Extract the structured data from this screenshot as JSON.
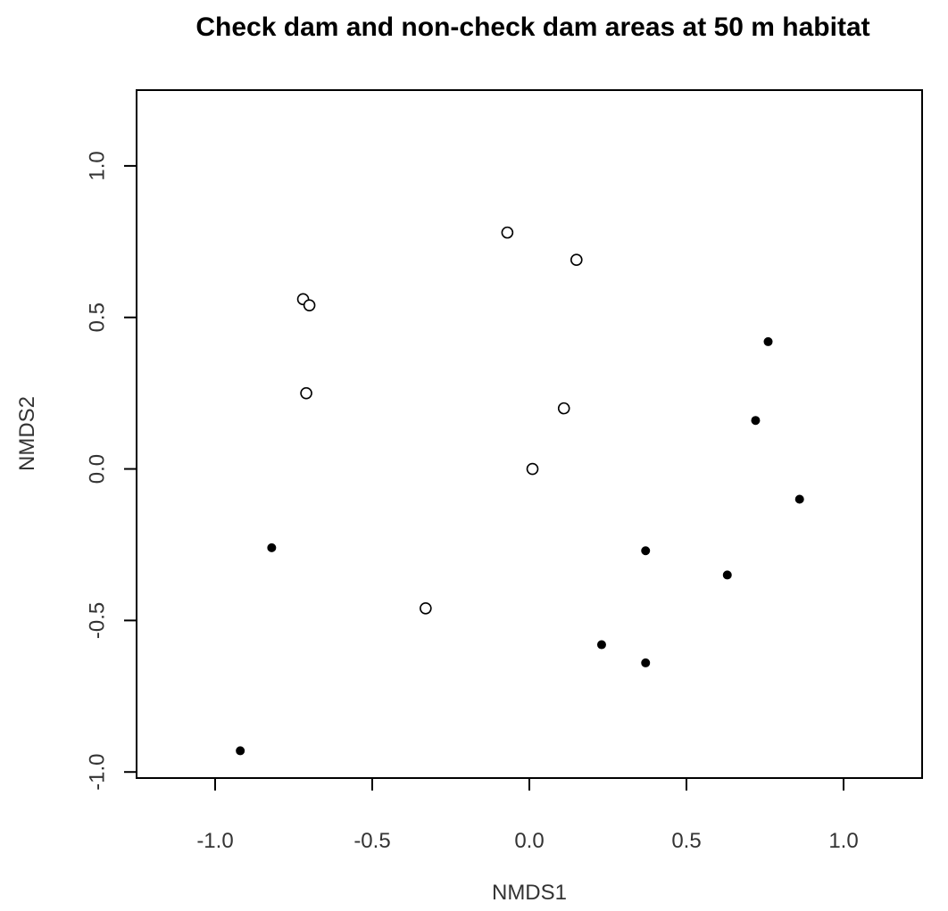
{
  "chart_data": {
    "type": "scatter",
    "title": "Check dam and non-check dam areas at 50 m habitat",
    "xlabel": "NMDS1",
    "ylabel": "NMDS2",
    "xlim": [
      -1.25,
      1.25
    ],
    "ylim": [
      -1.02,
      1.25
    ],
    "xticks": [
      -1.0,
      -0.5,
      0.0,
      0.5,
      1.0
    ],
    "xtick_labels": [
      "-1.0",
      "-0.5",
      "0.0",
      "0.5",
      "1.0"
    ],
    "yticks": [
      -1.0,
      -0.5,
      0.0,
      0.5,
      1.0
    ],
    "ytick_labels": [
      "-1.0",
      "-0.5",
      "0.0",
      "0.5",
      "1.0"
    ],
    "grid": false,
    "series": [
      {
        "marker": "open-circle",
        "color": "#000000",
        "points": [
          {
            "x": -0.07,
            "y": 0.78
          },
          {
            "x": 0.15,
            "y": 0.69
          },
          {
            "x": -0.72,
            "y": 0.56
          },
          {
            "x": -0.7,
            "y": 0.54
          },
          {
            "x": -0.71,
            "y": 0.25
          },
          {
            "x": 0.11,
            "y": 0.2
          },
          {
            "x": 0.01,
            "y": 0.0
          },
          {
            "x": -0.33,
            "y": -0.46
          }
        ]
      },
      {
        "marker": "filled-circle",
        "color": "#000000",
        "points": [
          {
            "x": 0.76,
            "y": 0.42
          },
          {
            "x": 0.72,
            "y": 0.16
          },
          {
            "x": 0.86,
            "y": -0.1
          },
          {
            "x": 0.37,
            "y": -0.27
          },
          {
            "x": 0.63,
            "y": -0.35
          },
          {
            "x": 0.23,
            "y": -0.58
          },
          {
            "x": 0.37,
            "y": -0.64
          },
          {
            "x": -0.82,
            "y": -0.26
          },
          {
            "x": -0.92,
            "y": -0.93
          }
        ]
      }
    ]
  }
}
